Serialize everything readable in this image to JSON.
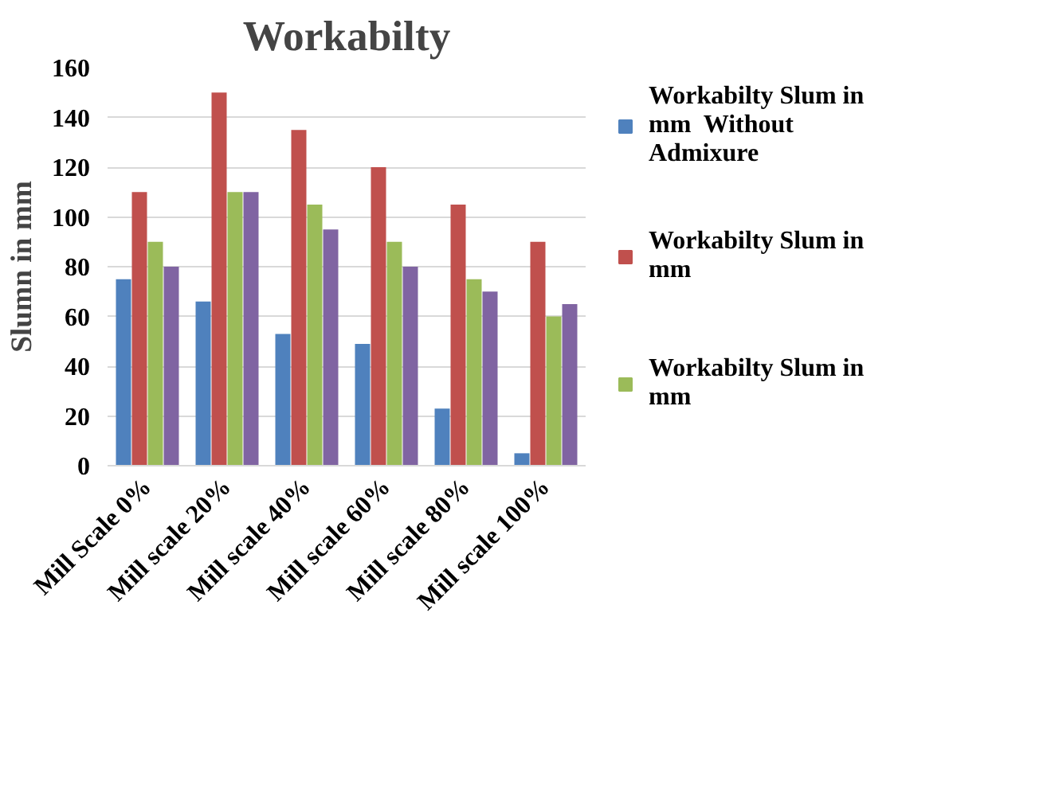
{
  "chart_data": {
    "type": "bar",
    "title": "Workabilty",
    "ylabel": "Slumn in mm",
    "categories": [
      "Mill Scale 0%",
      "Mill scale 20%",
      "Mill scale 40%",
      "Mill scale 60%",
      "Mill scale 80%",
      "Mill scale 100%"
    ],
    "series": [
      {
        "name": "Workabilty Slum in mm  Without Admixure",
        "color": "#4f81bd",
        "values": [
          75,
          66,
          53,
          49,
          23,
          5
        ]
      },
      {
        "name": "Workabilty Slum in mm",
        "color": "#c0504d",
        "values": [
          110,
          150,
          135,
          120,
          105,
          90
        ]
      },
      {
        "name": "Workabilty Slum in mm",
        "color": "#9bbb59",
        "values": [
          90,
          110,
          105,
          90,
          75,
          60
        ]
      },
      {
        "color": "#8064a2",
        "values": [
          80,
          110,
          95,
          80,
          70,
          65
        ]
      }
    ],
    "ylim": [
      0,
      160
    ],
    "yticks": [
      0,
      20,
      40,
      60,
      80,
      100,
      120,
      140,
      160
    ],
    "grid": "y",
    "legend": "right"
  }
}
